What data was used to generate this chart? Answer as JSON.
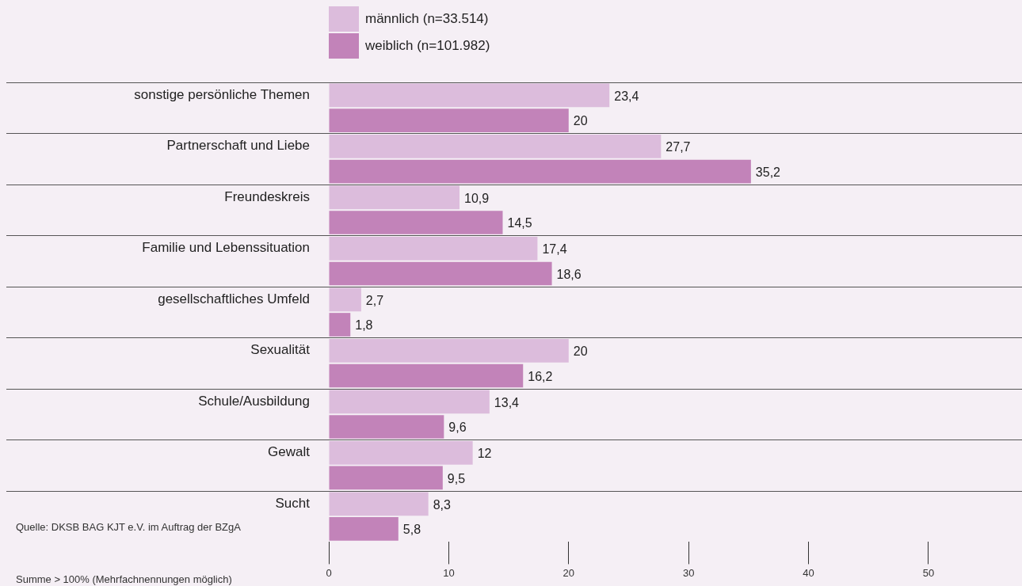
{
  "chart_data": {
    "type": "bar",
    "orientation": "horizontal",
    "categories": [
      "sonstige persönliche Themen",
      "Partnerschaft und Liebe",
      "Freundeskreis",
      "Familie und Lebenssituation",
      "gesellschaftliches Umfeld",
      "Sexualität",
      "Schule/Ausbildung",
      "Gewalt",
      "Sucht"
    ],
    "series": [
      {
        "name": "männlich (n=33.514)",
        "color": "#dcbcdc",
        "values": [
          23.4,
          27.7,
          10.9,
          17.4,
          2.7,
          20,
          13.4,
          12,
          8.3
        ],
        "value_labels": [
          "23,4",
          "27,7",
          "10,9",
          "17,4",
          "2,7",
          "20",
          "13,4",
          "12",
          "8,3"
        ]
      },
      {
        "name": "weiblich (n=101.982)",
        "color": "#c283b9",
        "values": [
          20,
          35.2,
          14.5,
          18.6,
          1.8,
          16.2,
          9.6,
          9.5,
          5.8
        ],
        "value_labels": [
          "20",
          "35,2",
          "14,5",
          "18,6",
          "1,8",
          "16,2",
          "9,6",
          "9,5",
          "5,8"
        ]
      }
    ],
    "xlim": [
      0,
      57.8
    ],
    "xticks": [
      0,
      10,
      20,
      30,
      40,
      50
    ],
    "grid": "y",
    "legend": "top",
    "annotations": [
      "Quelle: DKSB BAG KJT e.V. im Auftrag der BZgA",
      "Summe > 100% (Mehrfachnennungen möglich)"
    ]
  }
}
